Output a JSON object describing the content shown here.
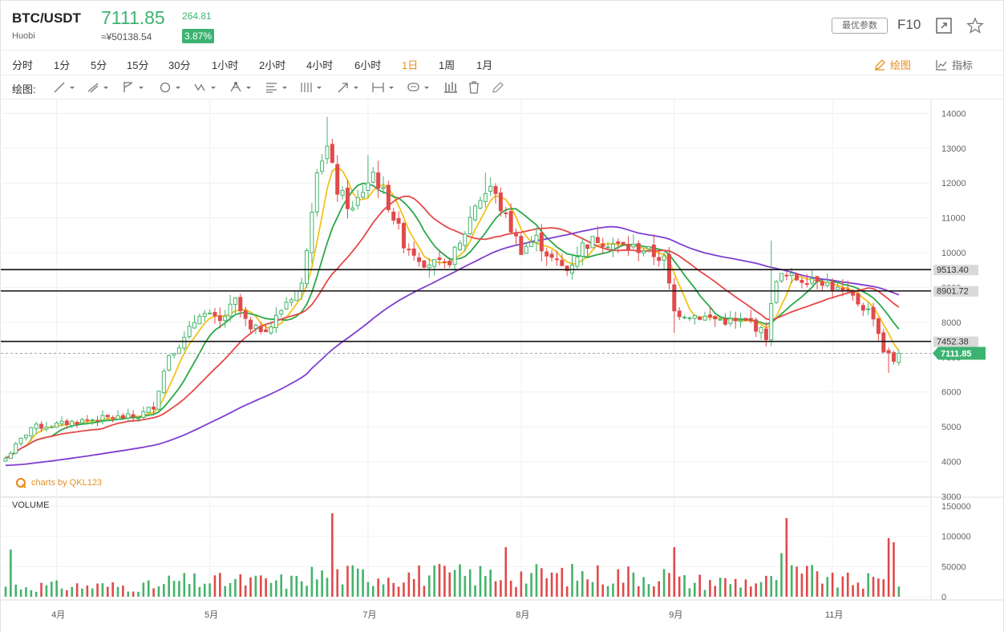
{
  "header": {
    "symbol": "BTC/USDT",
    "exchange": "Huobi",
    "price": "7111.85",
    "cny_price": "≈¥50138.54",
    "change": "264.81",
    "change_pct": "3.87%",
    "params_button": "最优参数",
    "f10": "F10",
    "icons": [
      "expand-icon",
      "star-icon"
    ]
  },
  "periods": {
    "items": [
      "分时",
      "1分",
      "5分",
      "15分",
      "30分",
      "1小时",
      "2小时",
      "4小时",
      "6小时",
      "1日",
      "1周",
      "1月"
    ],
    "active": "1日",
    "draw_label": "绘图",
    "indicator_label": "指标"
  },
  "drawbar": {
    "label": "绘图:",
    "tools": [
      "line-tool-icon",
      "ray-tool-icon",
      "channel-tool-icon",
      "shape-tool-icon",
      "pattern-tool-icon",
      "pitchfork-tool-icon",
      "fibonacci-tool-icon",
      "gann-tool-icon",
      "arrow-tool-icon",
      "measure-tool-icon",
      "annotation-tool-icon",
      "bar-pattern-icon",
      "trash-icon",
      "pen-icon"
    ]
  },
  "watermark": "charts by QKL123",
  "colors": {
    "up": "#45b36b",
    "down": "#e04a4a",
    "ma_yellow": "#f4c21a",
    "ma_green": "#2aa84a",
    "ma_red": "#e64848",
    "ma_purple": "#7f3fd0",
    "accent": "#e69022"
  },
  "chart_data": {
    "type": "candlestick",
    "ylim": [
      3000,
      14400
    ],
    "y_ticks": [
      "14000",
      "13000",
      "12000",
      "11000",
      "10000",
      "9000",
      "8000",
      "7000",
      "6000",
      "5000",
      "4000",
      "3000"
    ],
    "x_ticks": [
      {
        "label": "4月",
        "index": 10
      },
      {
        "label": "5月",
        "index": 40
      },
      {
        "label": "7月",
        "index": 71
      },
      {
        "label": "8月",
        "index": 101
      },
      {
        "label": "9月",
        "index": 131
      },
      {
        "label": "11月",
        "index": 162
      }
    ],
    "candle_count": 176,
    "anchors": [
      [
        0,
        4100
      ],
      [
        5,
        4980
      ],
      [
        10,
        5060
      ],
      [
        15,
        5180
      ],
      [
        20,
        5260
      ],
      [
        26,
        5300
      ],
      [
        29,
        5600
      ],
      [
        32,
        7100
      ],
      [
        35,
        7500
      ],
      [
        38,
        8300
      ],
      [
        42,
        8000
      ],
      [
        45,
        8600
      ],
      [
        48,
        7750
      ],
      [
        52,
        7900
      ],
      [
        55,
        8600
      ],
      [
        58,
        9050
      ],
      [
        61,
        12500
      ],
      [
        63,
        13000
      ],
      [
        65,
        11800
      ],
      [
        68,
        11200
      ],
      [
        70,
        11800
      ],
      [
        72,
        12300
      ],
      [
        75,
        11400
      ],
      [
        78,
        10300
      ],
      [
        82,
        9750
      ],
      [
        86,
        9600
      ],
      [
        89,
        10200
      ],
      [
        92,
        11400
      ],
      [
        95,
        11900
      ],
      [
        98,
        11000
      ],
      [
        101,
        10100
      ],
      [
        104,
        10400
      ],
      [
        107,
        9800
      ],
      [
        110,
        9500
      ],
      [
        113,
        10200
      ],
      [
        116,
        10400
      ],
      [
        120,
        10200
      ],
      [
        125,
        10100
      ],
      [
        129,
        9800
      ],
      [
        131,
        8300
      ],
      [
        135,
        8200
      ],
      [
        139,
        8100
      ],
      [
        143,
        8000
      ],
      [
        146,
        8000
      ],
      [
        149,
        7600
      ],
      [
        151,
        9300
      ],
      [
        153,
        9300
      ],
      [
        156,
        9250
      ],
      [
        159,
        9300
      ],
      [
        162,
        9000
      ],
      [
        166,
        8700
      ],
      [
        170,
        8200
      ],
      [
        172,
        7200
      ],
      [
        174,
        6900
      ],
      [
        175,
        7110
      ]
    ],
    "ma_series": [
      {
        "color": "yellow",
        "period": 5
      },
      {
        "color": "green",
        "period": 10
      },
      {
        "color": "red",
        "period": 20
      },
      {
        "color": "purple",
        "period": 60
      }
    ],
    "horizontal_lines": [
      {
        "label": "9513.40",
        "value": 9513.4
      },
      {
        "label": "8901.72",
        "value": 8901.72
      },
      {
        "label": "7452.38",
        "value": 7452.38
      }
    ],
    "last_price": {
      "label": "7111.85",
      "value": 7111.85
    },
    "volume": {
      "title": "VOLUME",
      "ylim": [
        0,
        150000
      ],
      "y_ticks": [
        "150000",
        "100000",
        "50000",
        "0"
      ],
      "spikes": [
        {
          "index": 64,
          "value": 138000
        },
        {
          "index": 153,
          "value": 130000
        },
        {
          "index": 173,
          "value": 97000
        },
        {
          "index": 174,
          "value": 90000
        },
        {
          "index": 131,
          "value": 82000
        },
        {
          "index": 152,
          "value": 72000
        },
        {
          "index": 1,
          "value": 78000
        },
        {
          "index": 98,
          "value": 82000
        }
      ]
    }
  }
}
